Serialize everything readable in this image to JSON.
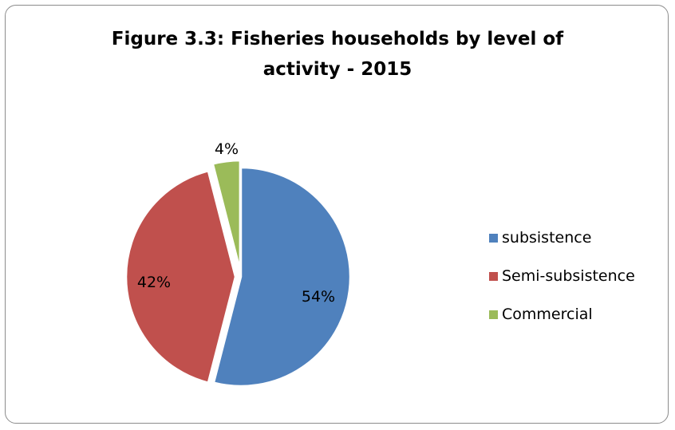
{
  "chart_data": {
    "type": "pie",
    "title_lines": [
      "Figure 3.3: Fisheries households by level of",
      "activity - 2015"
    ],
    "categories": [
      "subsistence",
      "Semi-subsistence",
      "Commercial"
    ],
    "values": [
      54,
      42,
      4
    ],
    "data_labels": [
      "54%",
      "42%",
      "4%"
    ],
    "colors": [
      "#4f81bd",
      "#c0504d",
      "#9bbb59"
    ],
    "legend": "right"
  }
}
